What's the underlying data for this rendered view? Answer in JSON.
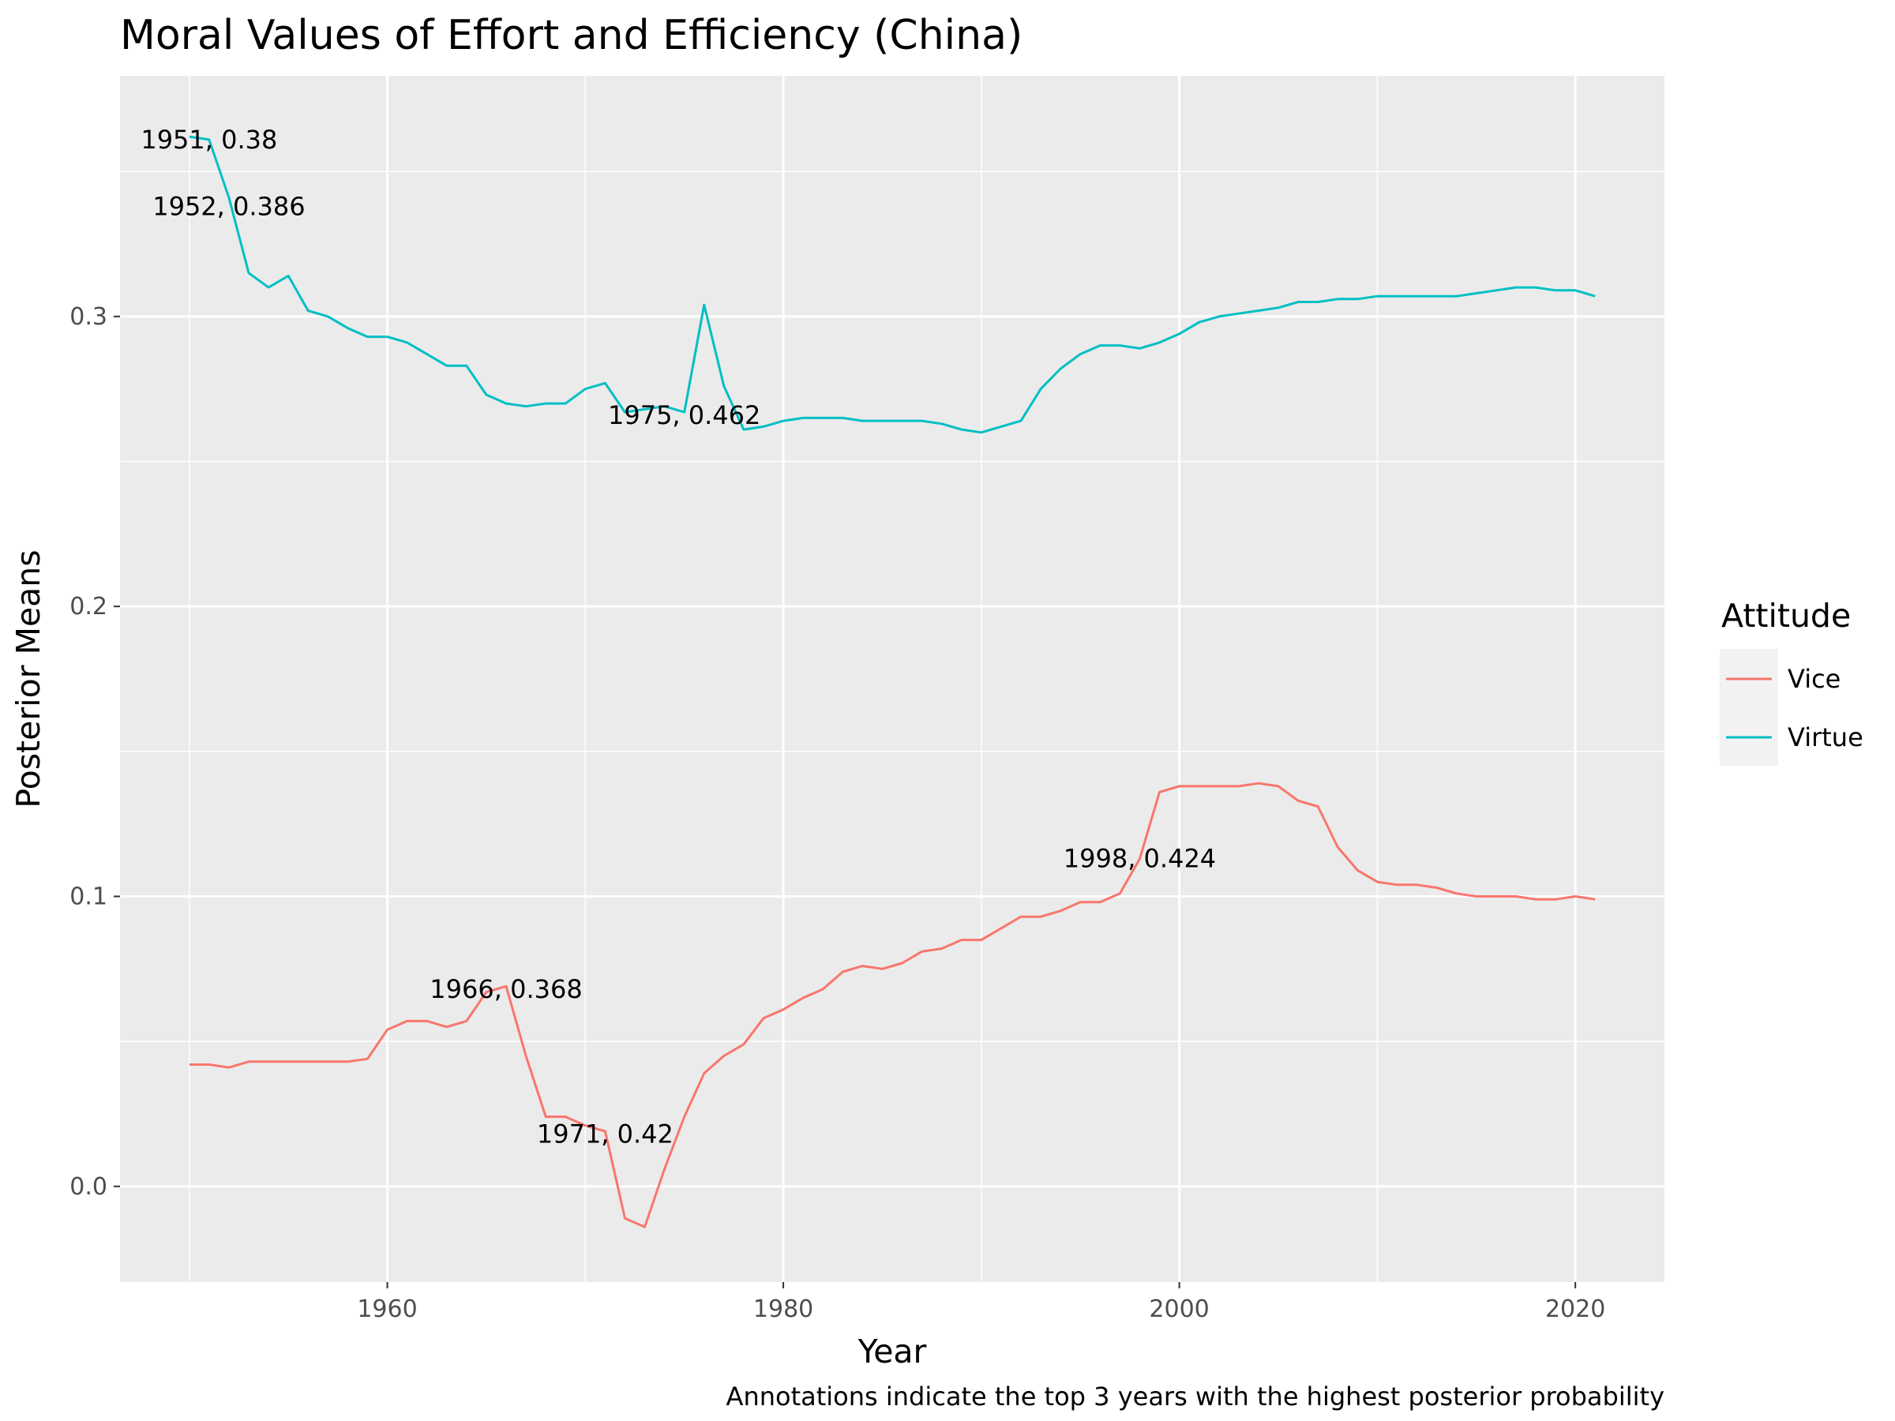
{
  "chart_data": {
    "type": "line",
    "title": "Moral Values of Effort and Efficiency (China)",
    "xlabel": "Year",
    "ylabel": "Posterior Means",
    "caption": "Annotations indicate the top 3 years with the highest posterior probability",
    "xlim": [
      1946.5,
      2024.5
    ],
    "ylim": [
      -0.033,
      0.383
    ],
    "x_ticks": [
      1960,
      1980,
      2000,
      2020
    ],
    "y_ticks": [
      0.0,
      0.1,
      0.2,
      0.3
    ],
    "y_tick_labels": [
      "0.0",
      "0.1",
      "0.2",
      "0.3"
    ],
    "x_tick_labels": [
      "1960",
      "1980",
      "2000",
      "2020"
    ],
    "grid": true,
    "legend": {
      "title": "Attitude",
      "position": "right"
    },
    "x": [
      1950,
      1951,
      1952,
      1953,
      1954,
      1955,
      1956,
      1957,
      1958,
      1959,
      1960,
      1961,
      1962,
      1963,
      1964,
      1965,
      1966,
      1967,
      1968,
      1969,
      1970,
      1971,
      1972,
      1973,
      1974,
      1975,
      1976,
      1977,
      1978,
      1979,
      1980,
      1981,
      1982,
      1983,
      1984,
      1985,
      1986,
      1987,
      1988,
      1989,
      1990,
      1991,
      1992,
      1993,
      1994,
      1995,
      1996,
      1997,
      1998,
      1999,
      2000,
      2001,
      2002,
      2003,
      2004,
      2005,
      2006,
      2007,
      2008,
      2009,
      2010,
      2011,
      2012,
      2013,
      2014,
      2015,
      2016,
      2017,
      2018,
      2019,
      2020,
      2021
    ],
    "series": [
      {
        "name": "Vice",
        "color": "#F8766D",
        "values": [
          0.042,
          0.042,
          0.041,
          0.043,
          0.043,
          0.043,
          0.043,
          0.043,
          0.043,
          0.044,
          0.054,
          0.057,
          0.057,
          0.055,
          0.057,
          0.067,
          0.069,
          0.045,
          0.024,
          0.024,
          0.021,
          0.019,
          -0.011,
          -0.014,
          0.006,
          0.024,
          0.039,
          0.045,
          0.049,
          0.058,
          0.061,
          0.065,
          0.068,
          0.074,
          0.076,
          0.075,
          0.077,
          0.081,
          0.082,
          0.085,
          0.085,
          0.089,
          0.093,
          0.093,
          0.095,
          0.098,
          0.098,
          0.101,
          0.113,
          0.136,
          0.138,
          0.138,
          0.138,
          0.138,
          0.139,
          0.138,
          0.133,
          0.131,
          0.117,
          0.109,
          0.105,
          0.104,
          0.104,
          0.103,
          0.101,
          0.1,
          0.1,
          0.1,
          0.099,
          0.099,
          0.1,
          0.099
        ]
      },
      {
        "name": "Virtue",
        "color": "#00BFC4",
        "values": [
          0.362,
          0.361,
          0.341,
          0.315,
          0.31,
          0.314,
          0.302,
          0.3,
          0.296,
          0.293,
          0.293,
          0.291,
          0.287,
          0.283,
          0.283,
          0.273,
          0.27,
          0.269,
          0.27,
          0.27,
          0.275,
          0.277,
          0.267,
          0.268,
          0.269,
          0.267,
          0.304,
          0.276,
          0.261,
          0.262,
          0.264,
          0.265,
          0.265,
          0.265,
          0.264,
          0.264,
          0.264,
          0.264,
          0.263,
          0.261,
          0.26,
          0.262,
          0.264,
          0.275,
          0.282,
          0.287,
          0.29,
          0.29,
          0.289,
          0.291,
          0.294,
          0.298,
          0.3,
          0.301,
          0.302,
          0.303,
          0.305,
          0.305,
          0.306,
          0.306,
          0.307,
          0.307,
          0.307,
          0.307,
          0.307,
          0.308,
          0.309,
          0.31,
          0.31,
          0.309,
          0.309,
          0.307
        ]
      }
    ],
    "annotations": [
      {
        "text": "1951, 0.38",
        "x": 1951,
        "y": 0.361,
        "series": "Virtue"
      },
      {
        "text": "1952, 0.386",
        "x": 1952,
        "y": 0.338,
        "series": "Virtue"
      },
      {
        "text": "1975, 0.462",
        "x": 1975,
        "y": 0.266,
        "series": "Virtue"
      },
      {
        "text": "1966, 0.368",
        "x": 1966,
        "y": 0.068,
        "series": "Vice"
      },
      {
        "text": "1971, 0.42",
        "x": 1971,
        "y": 0.018,
        "series": "Vice"
      },
      {
        "text": "1998, 0.424",
        "x": 1998,
        "y": 0.113,
        "series": "Vice"
      }
    ],
    "panel_background": "#EBEBEB",
    "grid_color": "#FFFFFF"
  }
}
